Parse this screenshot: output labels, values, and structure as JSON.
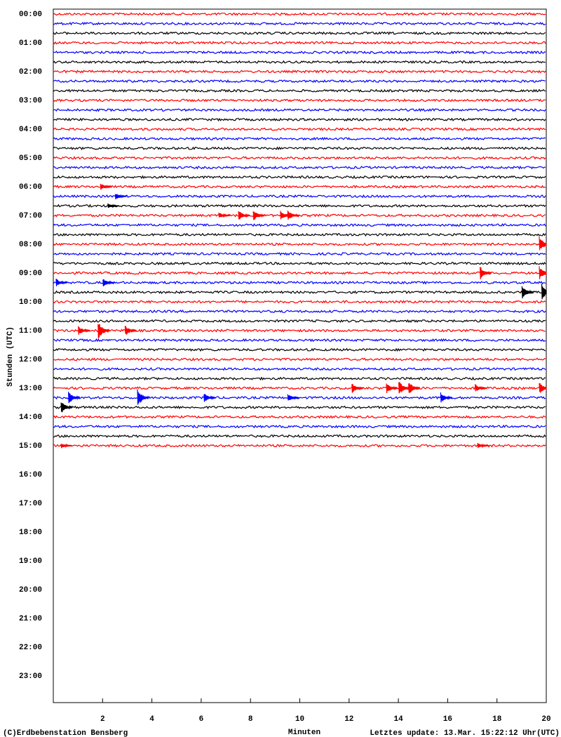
{
  "chart_data": {
    "type": "helicorder",
    "y_label": "Stunden (UTC)",
    "x_label": "Minuten",
    "xlim": [
      0,
      20
    ],
    "xticks": [
      2,
      4,
      6,
      8,
      10,
      12,
      14,
      16,
      18,
      20
    ],
    "hour_labels": [
      "00:00",
      "01:00",
      "02:00",
      "03:00",
      "04:00",
      "05:00",
      "06:00",
      "07:00",
      "08:00",
      "09:00",
      "10:00",
      "11:00",
      "12:00",
      "13:00",
      "14:00",
      "15:00",
      "16:00",
      "17:00",
      "18:00",
      "19:00",
      "20:00",
      "21:00",
      "22:00",
      "23:00"
    ],
    "traces": [
      {
        "color": "#ff0000"
      },
      {
        "color": "#0000ff"
      },
      {
        "color": "#000000"
      },
      {
        "color": "#ff0000"
      },
      {
        "color": "#0000ff"
      },
      {
        "color": "#000000"
      },
      {
        "color": "#ff0000"
      },
      {
        "color": "#0000ff"
      },
      {
        "color": "#000000"
      },
      {
        "color": "#ff0000"
      },
      {
        "color": "#0000ff"
      },
      {
        "color": "#000000"
      },
      {
        "color": "#ff0000"
      },
      {
        "color": "#0000ff"
      },
      {
        "color": "#000000"
      },
      {
        "color": "#ff0000"
      },
      {
        "color": "#0000ff"
      },
      {
        "color": "#000000"
      },
      {
        "color": "#ff0000",
        "events": [
          [
            2.0,
            5
          ]
        ]
      },
      {
        "color": "#0000ff",
        "events": [
          [
            2.6,
            5
          ]
        ]
      },
      {
        "color": "#000000",
        "events": [
          [
            2.3,
            4
          ]
        ]
      },
      {
        "color": "#ff0000",
        "events": [
          [
            6.8,
            5
          ],
          [
            7.6,
            8
          ],
          [
            8.2,
            8
          ],
          [
            9.3,
            7
          ],
          [
            9.6,
            8
          ]
        ]
      },
      {
        "color": "#0000ff"
      },
      {
        "color": "#000000"
      },
      {
        "color": "#ff0000",
        "events": [
          [
            19.8,
            12
          ]
        ]
      },
      {
        "color": "#0000ff"
      },
      {
        "color": "#000000"
      },
      {
        "color": "#ff0000",
        "events": [
          [
            17.4,
            10
          ],
          [
            19.8,
            10
          ]
        ]
      },
      {
        "color": "#0000ff",
        "events": [
          [
            0.2,
            6
          ],
          [
            2.1,
            6
          ]
        ]
      },
      {
        "color": "#000000",
        "events": [
          [
            19.1,
            10
          ],
          [
            19.9,
            12
          ]
        ]
      },
      {
        "color": "#ff0000"
      },
      {
        "color": "#0000ff"
      },
      {
        "color": "#000000"
      },
      {
        "color": "#ff0000",
        "events": [
          [
            1.1,
            7
          ],
          [
            1.9,
            14
          ],
          [
            3.0,
            8
          ]
        ]
      },
      {
        "color": "#0000ff"
      },
      {
        "color": "#000000"
      },
      {
        "color": "#ff0000"
      },
      {
        "color": "#0000ff"
      },
      {
        "color": "#000000"
      },
      {
        "color": "#ff0000",
        "events": [
          [
            12.2,
            8
          ],
          [
            13.6,
            8
          ],
          [
            14.1,
            12
          ],
          [
            14.5,
            10
          ],
          [
            17.2,
            6
          ],
          [
            19.8,
            9
          ]
        ]
      },
      {
        "color": "#0000ff",
        "events": [
          [
            0.7,
            10
          ],
          [
            3.5,
            14
          ],
          [
            6.2,
            7
          ],
          [
            9.6,
            6
          ],
          [
            15.8,
            8
          ]
        ]
      },
      {
        "color": "#000000",
        "events": [
          [
            0.4,
            10
          ]
        ]
      },
      {
        "color": "#ff0000"
      },
      {
        "color": "#0000ff"
      },
      {
        "color": "#000000"
      },
      {
        "color": "#ff0000",
        "events": [
          [
            0.4,
            4
          ],
          [
            17.3,
            4
          ]
        ]
      }
    ],
    "footer_left": "(C)Erdbebenstation Bensberg",
    "footer_right": "Letztes update: 13.Mar. 15:22:12 Uhr(UTC)"
  }
}
